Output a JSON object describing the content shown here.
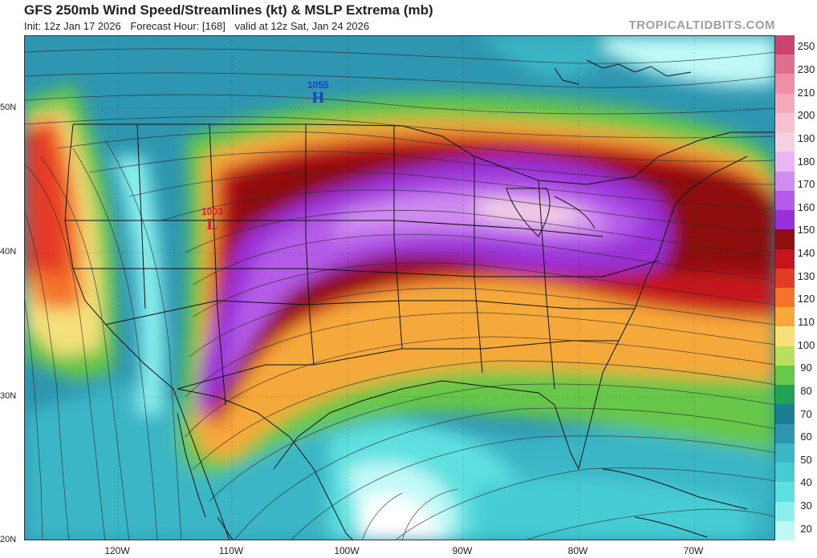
{
  "header": {
    "title": "GFS 250mb Wind Speed/Streamlines (kt) & MSLP Extrema (mb)",
    "init": "Init: 12z Jan 17 2026",
    "forecast_hour": "Forecast Hour: [168]",
    "valid": "valid at 12z Sat, Jan 24 2026",
    "brand": "TROPICALTIDBITS.COM"
  },
  "axes": {
    "lat_labels": [
      "50N",
      "40N",
      "30N",
      "20N"
    ],
    "lon_labels": [
      "120W",
      "110W",
      "100W",
      "90W",
      "80W",
      "70W"
    ]
  },
  "colorbar": {
    "labels": [
      "250",
      "230",
      "210",
      "200",
      "190",
      "180",
      "170",
      "160",
      "150",
      "140",
      "130",
      "120",
      "110",
      "100",
      "90",
      "80",
      "70",
      "60",
      "50",
      "40",
      "30",
      "20"
    ],
    "colors": [
      "#c9456d",
      "#df6f8f",
      "#f08fa9",
      "#f5a9bd",
      "#f7c1cf",
      "#f4d2e4",
      "#e9b6f4",
      "#d08cf0",
      "#b45be8",
      "#9a30d8",
      "#8e0f0f",
      "#c4161a",
      "#e43b25",
      "#f4742a",
      "#f6a93a",
      "#f5e07a",
      "#b8e05a",
      "#66c74a",
      "#1ea452",
      "#1c7e92",
      "#2e96b0",
      "#3ab6c6",
      "#47ccd4",
      "#5ee0e0",
      "#8af0ee",
      "#bff9f7"
    ]
  },
  "pressure_centers": {
    "high": {
      "value": "1055",
      "symbol": "H"
    },
    "low": {
      "value": "1003",
      "symbol": "L"
    }
  }
}
